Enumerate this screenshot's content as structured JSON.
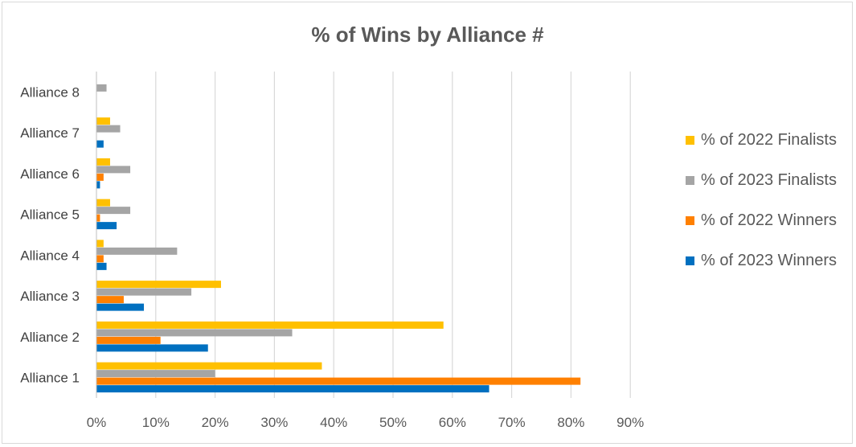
{
  "chart_data": {
    "type": "bar",
    "orientation": "horizontal",
    "title": "% of Wins by Alliance #",
    "categories": [
      "Alliance 1",
      "Alliance 2",
      "Alliance 3",
      "Alliance 4",
      "Alliance 5",
      "Alliance 6",
      "Alliance 7",
      "Alliance 8"
    ],
    "series": [
      {
        "name": "% of 2022 Finalists",
        "color": "#FFC000",
        "values": [
          38,
          58.5,
          21,
          1.2,
          2.3,
          2.3,
          2.3,
          0
        ]
      },
      {
        "name": "% of 2023 Finalists",
        "color": "#A5A5A5",
        "values": [
          20,
          33,
          16,
          13.6,
          5.7,
          5.7,
          4,
          1.7
        ]
      },
      {
        "name": "% of 2022 Winners",
        "color": "#FF8000",
        "values": [
          81.6,
          10.8,
          4.6,
          1.2,
          0.6,
          1.2,
          0,
          0
        ]
      },
      {
        "name": "% of 2023 Winners",
        "color": "#0070C0",
        "values": [
          66.2,
          18.8,
          8,
          1.7,
          3.4,
          0.6,
          1.2,
          0
        ]
      }
    ],
    "x_ticks": [
      "0%",
      "10%",
      "20%",
      "30%",
      "40%",
      "50%",
      "60%",
      "70%",
      "80%",
      "90%"
    ],
    "xlim": [
      0,
      90
    ],
    "grid": true,
    "gridline_color": "#d9d9d9",
    "legend_position": "right",
    "legend_order": [
      "% of 2022 Finalists",
      "% of 2023 Finalists",
      "% of 2022 Winners",
      "% of 2023 Winners"
    ]
  }
}
